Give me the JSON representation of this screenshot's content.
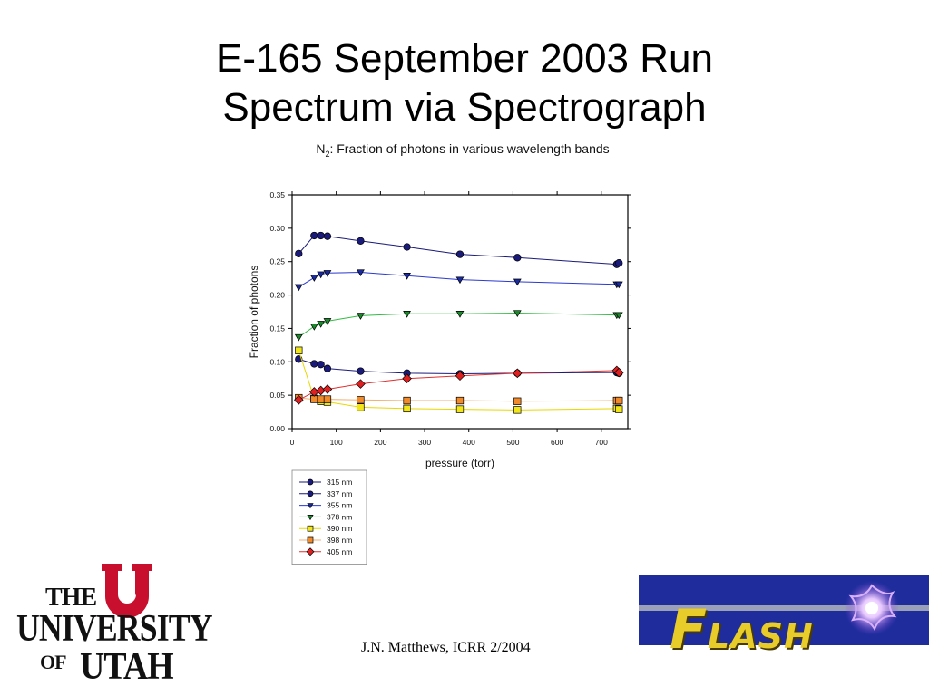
{
  "slide": {
    "title_line1": "E-165 September 2003 Run",
    "title_line2": "Spectrum via Spectrograph",
    "footer": "J.N. Matthews, ICRR 2/2004"
  },
  "logos": {
    "university": {
      "line1": "THE",
      "line2": "UNIVERSITY",
      "line3": "OF",
      "line4": "UTAH"
    },
    "flash": {
      "first": "F",
      "rest": "LASH"
    }
  },
  "chart_data": {
    "type": "line",
    "title_prefix": "N",
    "title_sub": "2",
    "title_rest": ": Fraction of photons in various wavelength bands",
    "xlabel": "pressure (torr)",
    "ylabel": "Fraction of photons",
    "xlim": [
      0,
      760
    ],
    "ylim": [
      0.0,
      0.35
    ],
    "xticks": [
      0,
      100,
      200,
      300,
      400,
      500,
      600,
      700
    ],
    "yticks": [
      0.0,
      0.05,
      0.1,
      0.15,
      0.2,
      0.25,
      0.3,
      0.35
    ],
    "ytick_labels": [
      "0.00",
      "0.05",
      "0.10",
      "0.15",
      "0.20",
      "0.25",
      "0.30",
      "0.35"
    ],
    "grid": false,
    "legend_position": "below",
    "series": [
      {
        "name": "315 nm",
        "marker": "circle",
        "color": "#1a1a7a",
        "line": "#1a1a7a",
        "x": [
          15,
          50,
          65,
          80,
          155,
          260,
          380,
          510,
          735,
          740
        ],
        "y": [
          0.104,
          0.097,
          0.096,
          0.09,
          0.086,
          0.083,
          0.082,
          0.083,
          0.084,
          0.083
        ]
      },
      {
        "name": "337 nm",
        "marker": "circle",
        "color": "#1a1a7a",
        "line": "#1a1a7a",
        "x": [
          15,
          50,
          65,
          80,
          155,
          260,
          380,
          510,
          735,
          740
        ],
        "y": [
          0.262,
          0.289,
          0.289,
          0.288,
          0.281,
          0.272,
          0.261,
          0.256,
          0.246,
          0.248
        ]
      },
      {
        "name": "355 nm",
        "marker": "triangle-down",
        "color": "#1a2aa0",
        "line": "#2a3ad0",
        "x": [
          15,
          50,
          65,
          80,
          155,
          260,
          380,
          510,
          735,
          740
        ],
        "y": [
          0.212,
          0.226,
          0.231,
          0.233,
          0.234,
          0.229,
          0.223,
          0.22,
          0.216,
          0.216
        ]
      },
      {
        "name": "378 nm",
        "marker": "triangle-down",
        "color": "#1a8a2a",
        "line": "#33bb44",
        "x": [
          15,
          50,
          65,
          80,
          155,
          260,
          380,
          510,
          735,
          740
        ],
        "y": [
          0.137,
          0.153,
          0.157,
          0.161,
          0.169,
          0.172,
          0.172,
          0.173,
          0.17,
          0.17
        ]
      },
      {
        "name": "390 nm",
        "marker": "square",
        "color": "#f2e61a",
        "line": "#e8d800",
        "x": [
          15,
          50,
          65,
          80,
          155,
          260,
          380,
          510,
          735,
          740
        ],
        "y": [
          0.117,
          0.045,
          0.041,
          0.04,
          0.032,
          0.03,
          0.029,
          0.028,
          0.03,
          0.029
        ]
      },
      {
        "name": "398 nm",
        "marker": "square",
        "color": "#f08a2a",
        "line": "#f0b070",
        "x": [
          15,
          50,
          65,
          80,
          155,
          260,
          380,
          510,
          735,
          740
        ],
        "y": [
          0.046,
          0.044,
          0.044,
          0.044,
          0.043,
          0.042,
          0.042,
          0.041,
          0.042,
          0.042
        ]
      },
      {
        "name": "405 nm",
        "marker": "diamond",
        "color": "#e02020",
        "line": "#e03030",
        "x": [
          15,
          50,
          65,
          80,
          155,
          260,
          380,
          510,
          735,
          740
        ],
        "y": [
          0.043,
          0.055,
          0.057,
          0.059,
          0.067,
          0.075,
          0.079,
          0.083,
          0.087,
          0.084
        ]
      }
    ]
  }
}
